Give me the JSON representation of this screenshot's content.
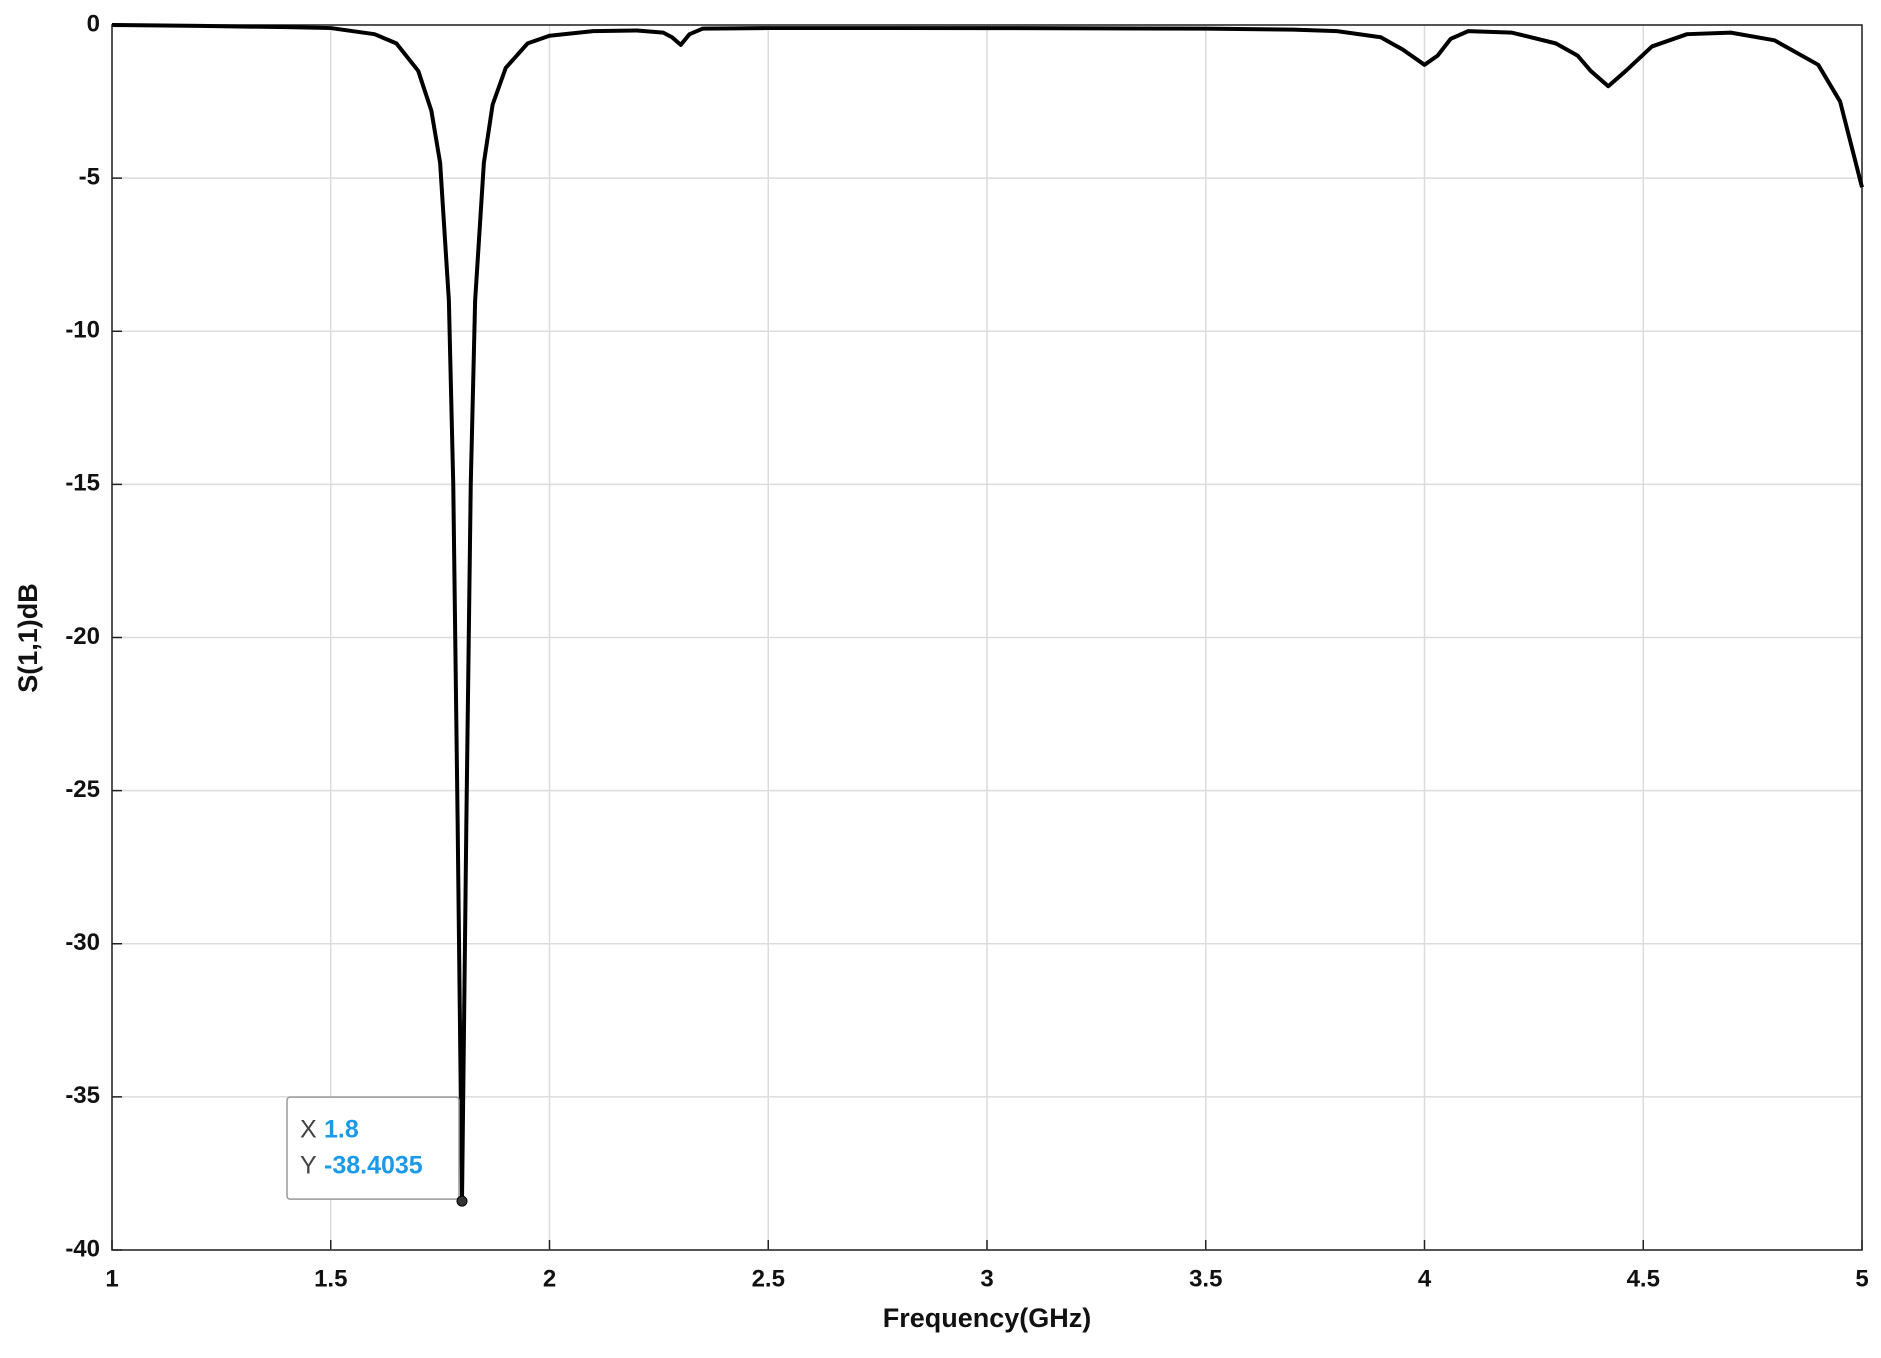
{
  "chart_data": {
    "type": "line",
    "xlabel": "Frequency(GHz)",
    "ylabel": "S(1,1)dB",
    "xlim": [
      1,
      5
    ],
    "ylim": [
      -40,
      0
    ],
    "xticks": [
      1,
      1.5,
      2,
      2.5,
      3,
      3.5,
      4,
      4.5,
      5
    ],
    "yticks": [
      -40,
      -35,
      -30,
      -25,
      -20,
      -15,
      -10,
      -5,
      0
    ],
    "grid": true,
    "x": [
      1,
      1.2,
      1.4,
      1.5,
      1.6,
      1.65,
      1.7,
      1.73,
      1.75,
      1.77,
      1.78,
      1.79,
      1.8,
      1.81,
      1.82,
      1.83,
      1.85,
      1.87,
      1.9,
      1.95,
      2.0,
      2.1,
      2.2,
      2.26,
      2.28,
      2.3,
      2.32,
      2.35,
      2.5,
      3.0,
      3.5,
      3.7,
      3.8,
      3.9,
      3.95,
      4.0,
      4.03,
      4.06,
      4.1,
      4.2,
      4.3,
      4.35,
      4.38,
      4.42,
      4.46,
      4.52,
      4.6,
      4.7,
      4.8,
      4.9,
      4.95,
      5.0
    ],
    "series": [
      {
        "name": "S(1,1)",
        "color": "#000000",
        "values": [
          0,
          -0.03,
          -0.07,
          -0.1,
          -0.3,
          -0.6,
          -1.5,
          -2.8,
          -4.5,
          -9,
          -15,
          -26,
          -38.4035,
          -26,
          -15,
          -9,
          -4.5,
          -2.6,
          -1.4,
          -0.6,
          -0.35,
          -0.2,
          -0.18,
          -0.25,
          -0.4,
          -0.65,
          -0.3,
          -0.12,
          -0.1,
          -0.1,
          -0.12,
          -0.15,
          -0.2,
          -0.4,
          -0.8,
          -1.3,
          -1.0,
          -0.45,
          -0.2,
          -0.25,
          -0.6,
          -1.0,
          -1.5,
          -2.0,
          -1.5,
          -0.7,
          -0.3,
          -0.25,
          -0.5,
          -1.3,
          -2.5,
          -5.3
        ]
      }
    ],
    "annotation": {
      "x_label": "X",
      "x": 1.8,
      "y_label": "Y",
      "y": -38.4035
    }
  }
}
